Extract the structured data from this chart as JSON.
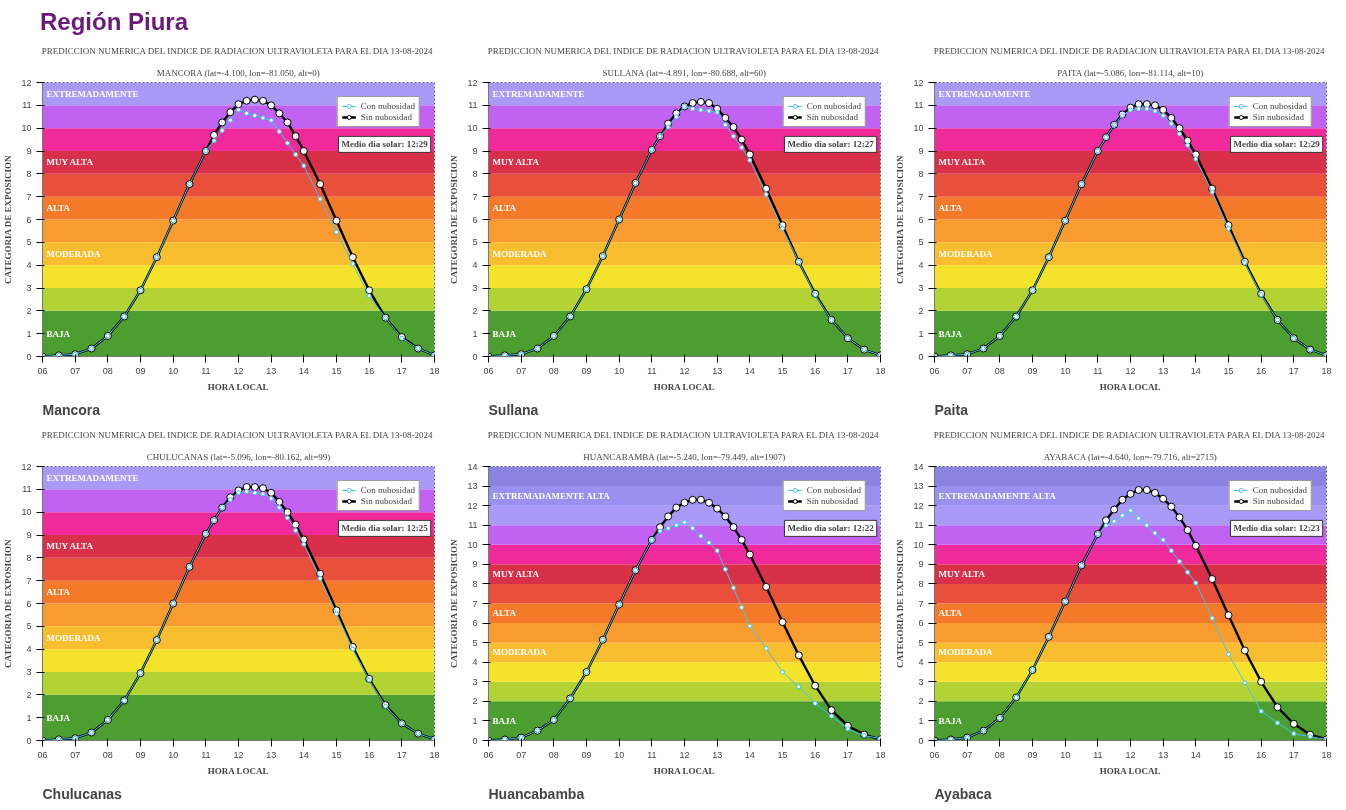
{
  "chart_data": [
    {
      "type": "line",
      "title": "PREDICCION NUMERICA DEL INDICE DE RADIACION ULTRAVIOLETA PARA EL DIA 13-08-2024",
      "subtitle": "MANCORA (lat=-4.100, lon=-81.050, alt=0)",
      "xlabel": "HORA LOCAL",
      "ylabel": "CATEGORIA DE EXPOSICION",
      "marker": "circle",
      "line_style": "solid",
      "legend": "top right",
      "x": [
        6,
        6.5,
        7,
        7.5,
        8,
        8.5,
        9,
        9.5,
        10,
        10.5,
        11,
        11.25,
        11.5,
        11.75,
        12,
        12.25,
        12.5,
        12.75,
        13,
        13.25,
        13.5,
        13.75,
        14,
        14.5,
        15,
        15.5,
        16,
        16.5,
        17,
        17.5,
        18
      ],
      "series": [
        {
          "name": "Con nubosidad",
          "color": "#45c4e6",
          "values": [
            0,
            0.05,
            0.1,
            0.35,
            0.9,
            1.75,
            2.9,
            4.35,
            5.95,
            7.55,
            9.0,
            9.45,
            9.9,
            10.35,
            10.8,
            10.65,
            10.55,
            10.45,
            10.35,
            9.85,
            9.35,
            8.85,
            8.35,
            6.9,
            5.45,
            4.05,
            2.65,
            1.7,
            0.8,
            0.35,
            0.05
          ]
        },
        {
          "name": "Sin nubosidad",
          "color": "#000000",
          "values": [
            0,
            0.05,
            0.1,
            0.35,
            0.9,
            1.75,
            2.9,
            4.35,
            5.95,
            7.55,
            9.0,
            9.7,
            10.25,
            10.7,
            11.05,
            11.2,
            11.25,
            11.2,
            11.0,
            10.65,
            10.25,
            9.65,
            9.0,
            7.55,
            5.95,
            4.35,
            2.9,
            1.7,
            0.85,
            0.35,
            0.05
          ]
        }
      ],
      "xlim": [
        6,
        18
      ],
      "ylim": [
        0,
        12
      ],
      "xticks": [
        {
          "value": 6,
          "label": "06"
        },
        {
          "value": 7,
          "label": "07"
        },
        {
          "value": 8,
          "label": "08"
        },
        {
          "value": 9,
          "label": "09"
        },
        10,
        11,
        12,
        13,
        14,
        15,
        16,
        17,
        18
      ],
      "yticks": [
        0,
        1,
        2,
        3,
        4,
        5,
        6,
        7,
        8,
        9,
        10,
        11,
        12
      ],
      "bands": [
        {
          "axis": "y",
          "from": 0,
          "to": 2,
          "color": "#4b9e2f",
          "label": "BAJA"
        },
        {
          "axis": "y",
          "from": 2,
          "to": 3,
          "color": "#b3d334"
        },
        {
          "axis": "y",
          "from": 3,
          "to": 4,
          "color": "#f5e32b"
        },
        {
          "axis": "y",
          "from": 4,
          "to": 5,
          "color": "#f8be30",
          "label": "MODERADA"
        },
        {
          "axis": "y",
          "from": 5,
          "to": 6,
          "color": "#f89c30"
        },
        {
          "axis": "y",
          "from": 6,
          "to": 7,
          "color": "#f47a2a",
          "label": "ALTA"
        },
        {
          "axis": "y",
          "from": 7,
          "to": 8,
          "color": "#e8503c"
        },
        {
          "axis": "y",
          "from": 8,
          "to": 9,
          "color": "#d9304a",
          "label": "MUY ALTA"
        },
        {
          "axis": "y",
          "from": 9,
          "to": 10,
          "color": "#f02a9a"
        },
        {
          "axis": "y",
          "from": 10,
          "to": 11,
          "color": "#c262f2"
        },
        {
          "axis": "y",
          "from": 11,
          "to": 12,
          "color": "#a99af8",
          "label": "EXTREMADAMENTE"
        }
      ],
      "annotations": [
        "Región Piura",
        "Medio dia solar: 12:29",
        "Mancora"
      ]
    },
    {
      "type": "line",
      "title": "PREDICCION NUMERICA DEL INDICE DE RADIACION ULTRAVIOLETA PARA EL DIA 13-08-2024",
      "subtitle": "SULLANA (lat=-4.891, lon=-80.688, alt=60)",
      "xlabel": "HORA LOCAL",
      "ylabel": "CATEGORIA DE EXPOSICION",
      "marker": "circle",
      "line_style": "solid",
      "legend": "top right",
      "x": [
        6,
        6.5,
        7,
        7.5,
        8,
        8.5,
        9,
        9.5,
        10,
        10.5,
        11,
        11.25,
        11.5,
        11.75,
        12,
        12.25,
        12.5,
        12.75,
        13,
        13.25,
        13.5,
        13.75,
        14,
        14.5,
        15,
        15.5,
        16,
        16.5,
        17,
        17.5,
        18
      ],
      "series": [
        {
          "name": "Con nubosidad",
          "color": "#45c4e6",
          "values": [
            0,
            0.05,
            0.1,
            0.35,
            0.9,
            1.75,
            2.95,
            4.4,
            6.0,
            7.6,
            9.05,
            9.65,
            10.05,
            10.5,
            10.95,
            10.85,
            10.8,
            10.75,
            10.7,
            10.15,
            9.65,
            9.15,
            8.6,
            7.1,
            5.6,
            4.15,
            2.7,
            1.6,
            0.8,
            0.3,
            0.05
          ]
        },
        {
          "name": "Sin nubosidad",
          "color": "#000000",
          "values": [
            0,
            0.05,
            0.1,
            0.35,
            0.9,
            1.75,
            2.95,
            4.4,
            6.0,
            7.6,
            9.05,
            9.65,
            10.2,
            10.65,
            10.95,
            11.1,
            11.15,
            11.1,
            10.85,
            10.45,
            10.05,
            9.5,
            8.85,
            7.35,
            5.75,
            4.15,
            2.75,
            1.6,
            0.8,
            0.3,
            0.05
          ]
        }
      ],
      "xlim": [
        6,
        18
      ],
      "ylim": [
        0,
        12
      ],
      "xticks": [
        {
          "value": 6,
          "label": "06"
        },
        {
          "value": 7,
          "label": "07"
        },
        {
          "value": 8,
          "label": "08"
        },
        {
          "value": 9,
          "label": "09"
        },
        10,
        11,
        12,
        13,
        14,
        15,
        16,
        17,
        18
      ],
      "yticks": [
        0,
        1,
        2,
        3,
        4,
        5,
        6,
        7,
        8,
        9,
        10,
        11,
        12
      ],
      "bands": [
        {
          "axis": "y",
          "from": 0,
          "to": 2,
          "color": "#4b9e2f",
          "label": "BAJA"
        },
        {
          "axis": "y",
          "from": 2,
          "to": 3,
          "color": "#b3d334"
        },
        {
          "axis": "y",
          "from": 3,
          "to": 4,
          "color": "#f5e32b"
        },
        {
          "axis": "y",
          "from": 4,
          "to": 5,
          "color": "#f8be30",
          "label": "MODERADA"
        },
        {
          "axis": "y",
          "from": 5,
          "to": 6,
          "color": "#f89c30"
        },
        {
          "axis": "y",
          "from": 6,
          "to": 7,
          "color": "#f47a2a",
          "label": "ALTA"
        },
        {
          "axis": "y",
          "from": 7,
          "to": 8,
          "color": "#e8503c"
        },
        {
          "axis": "y",
          "from": 8,
          "to": 9,
          "color": "#d9304a",
          "label": "MUY ALTA"
        },
        {
          "axis": "y",
          "from": 9,
          "to": 10,
          "color": "#f02a9a"
        },
        {
          "axis": "y",
          "from": 10,
          "to": 11,
          "color": "#c262f2"
        },
        {
          "axis": "y",
          "from": 11,
          "to": 12,
          "color": "#a99af8",
          "label": "EXTREMADAMENTE"
        }
      ],
      "annotations": [
        "Medio dia solar: 12:27",
        "Sullana"
      ]
    },
    {
      "type": "line",
      "title": "PREDICCION NUMERICA DEL INDICE DE RADIACION ULTRAVIOLETA PARA EL DIA 13-08-2024",
      "subtitle": "PAITA (lat=-5.086, lon=-81.114, alt=10)",
      "xlabel": "HORA LOCAL",
      "ylabel": "CATEGORIA DE EXPOSICION",
      "marker": "circle",
      "line_style": "solid",
      "legend": "top right",
      "x": [
        6,
        6.5,
        7,
        7.5,
        8,
        8.5,
        9,
        9.5,
        10,
        10.5,
        11,
        11.25,
        11.5,
        11.75,
        12,
        12.25,
        12.5,
        12.75,
        13,
        13.25,
        13.5,
        13.75,
        14,
        14.5,
        15,
        15.5,
        16,
        16.5,
        17,
        17.5,
        18
      ],
      "series": [
        {
          "name": "Con nubosidad",
          "color": "#45c4e6",
          "values": [
            0,
            0.05,
            0.1,
            0.35,
            0.9,
            1.75,
            2.9,
            4.35,
            5.95,
            7.55,
            9.0,
            9.6,
            10.15,
            10.55,
            10.8,
            10.85,
            10.85,
            10.75,
            10.55,
            10.2,
            9.75,
            9.25,
            8.65,
            7.2,
            5.6,
            4.1,
            2.7,
            1.6,
            0.8,
            0.3,
            0.05
          ]
        },
        {
          "name": "Sin nubosidad",
          "color": "#000000",
          "values": [
            0,
            0.05,
            0.1,
            0.35,
            0.9,
            1.75,
            2.9,
            4.35,
            5.95,
            7.55,
            9.0,
            9.6,
            10.15,
            10.6,
            10.9,
            11.05,
            11.05,
            11.0,
            10.8,
            10.45,
            10.0,
            9.45,
            8.85,
            7.35,
            5.75,
            4.15,
            2.75,
            1.6,
            0.8,
            0.3,
            0.05
          ]
        }
      ],
      "xlim": [
        6,
        18
      ],
      "ylim": [
        0,
        12
      ],
      "xticks": [
        {
          "value": 6,
          "label": "06"
        },
        {
          "value": 7,
          "label": "07"
        },
        {
          "value": 8,
          "label": "08"
        },
        {
          "value": 9,
          "label": "09"
        },
        10,
        11,
        12,
        13,
        14,
        15,
        16,
        17,
        18
      ],
      "yticks": [
        0,
        1,
        2,
        3,
        4,
        5,
        6,
        7,
        8,
        9,
        10,
        11,
        12
      ],
      "bands": [
        {
          "axis": "y",
          "from": 0,
          "to": 2,
          "color": "#4b9e2f",
          "label": "BAJA"
        },
        {
          "axis": "y",
          "from": 2,
          "to": 3,
          "color": "#b3d334"
        },
        {
          "axis": "y",
          "from": 3,
          "to": 4,
          "color": "#f5e32b"
        },
        {
          "axis": "y",
          "from": 4,
          "to": 5,
          "color": "#f8be30",
          "label": "MODERADA"
        },
        {
          "axis": "y",
          "from": 5,
          "to": 6,
          "color": "#f89c30"
        },
        {
          "axis": "y",
          "from": 6,
          "to": 7,
          "color": "#f47a2a",
          "label": "ALTA"
        },
        {
          "axis": "y",
          "from": 7,
          "to": 8,
          "color": "#e8503c"
        },
        {
          "axis": "y",
          "from": 8,
          "to": 9,
          "color": "#d9304a",
          "label": "MUY ALTA"
        },
        {
          "axis": "y",
          "from": 9,
          "to": 10,
          "color": "#f02a9a"
        },
        {
          "axis": "y",
          "from": 10,
          "to": 11,
          "color": "#c262f2"
        },
        {
          "axis": "y",
          "from": 11,
          "to": 12,
          "color": "#a99af8",
          "label": "EXTREMADAMENTE"
        }
      ],
      "annotations": [
        "Medio dia solar: 12:29",
        "Paita"
      ]
    },
    {
      "type": "line",
      "title": "PREDICCION NUMERICA DEL INDICE DE RADIACION ULTRAVIOLETA PARA EL DIA 13-08-2024",
      "subtitle": "CHULUCANAS (lat=-5.096, lon=-80.162, alt=99)",
      "xlabel": "HORA LOCAL",
      "ylabel": "CATEGORIA DE EXPOSICION",
      "marker": "circle",
      "line_style": "solid",
      "legend": "top right",
      "x": [
        6,
        6.5,
        7,
        7.5,
        8,
        8.5,
        9,
        9.5,
        10,
        10.5,
        11,
        11.25,
        11.5,
        11.75,
        12,
        12.25,
        12.5,
        12.75,
        13,
        13.25,
        13.5,
        13.75,
        14,
        14.5,
        15,
        15.5,
        16,
        16.5,
        17,
        17.5,
        18
      ],
      "series": [
        {
          "name": "Con nubosidad",
          "color": "#45c4e6",
          "values": [
            0,
            0.05,
            0.1,
            0.35,
            0.9,
            1.75,
            2.95,
            4.4,
            6.0,
            7.6,
            9.05,
            9.65,
            10.2,
            10.55,
            10.85,
            10.9,
            10.85,
            10.8,
            10.6,
            10.2,
            9.75,
            9.2,
            8.6,
            7.1,
            5.55,
            4.0,
            2.65,
            1.5,
            0.75,
            0.3,
            0.05
          ]
        },
        {
          "name": "Sin nubosidad",
          "color": "#000000",
          "values": [
            0,
            0.05,
            0.1,
            0.35,
            0.9,
            1.75,
            2.95,
            4.4,
            6.0,
            7.6,
            9.05,
            9.65,
            10.2,
            10.65,
            10.95,
            11.1,
            11.1,
            11.05,
            10.85,
            10.45,
            10.0,
            9.45,
            8.8,
            7.3,
            5.7,
            4.1,
            2.7,
            1.55,
            0.75,
            0.3,
            0.05
          ]
        }
      ],
      "xlim": [
        6,
        18
      ],
      "ylim": [
        0,
        12
      ],
      "xticks": [
        {
          "value": 6,
          "label": "06"
        },
        {
          "value": 7,
          "label": "07"
        },
        {
          "value": 8,
          "label": "08"
        },
        {
          "value": 9,
          "label": "09"
        },
        10,
        11,
        12,
        13,
        14,
        15,
        16,
        17,
        18
      ],
      "yticks": [
        0,
        1,
        2,
        3,
        4,
        5,
        6,
        7,
        8,
        9,
        10,
        11,
        12
      ],
      "bands": [
        {
          "axis": "y",
          "from": 0,
          "to": 2,
          "color": "#4b9e2f",
          "label": "BAJA"
        },
        {
          "axis": "y",
          "from": 2,
          "to": 3,
          "color": "#b3d334"
        },
        {
          "axis": "y",
          "from": 3,
          "to": 4,
          "color": "#f5e32b"
        },
        {
          "axis": "y",
          "from": 4,
          "to": 5,
          "color": "#f8be30",
          "label": "MODERADA"
        },
        {
          "axis": "y",
          "from": 5,
          "to": 6,
          "color": "#f89c30"
        },
        {
          "axis": "y",
          "from": 6,
          "to": 7,
          "color": "#f47a2a",
          "label": "ALTA"
        },
        {
          "axis": "y",
          "from": 7,
          "to": 8,
          "color": "#e8503c"
        },
        {
          "axis": "y",
          "from": 8,
          "to": 9,
          "color": "#d9304a",
          "label": "MUY ALTA"
        },
        {
          "axis": "y",
          "from": 9,
          "to": 10,
          "color": "#f02a9a"
        },
        {
          "axis": "y",
          "from": 10,
          "to": 11,
          "color": "#c262f2"
        },
        {
          "axis": "y",
          "from": 11,
          "to": 12,
          "color": "#a99af8",
          "label": "EXTREMADAMENTE"
        }
      ],
      "annotations": [
        "Medio dia solar: 12:25",
        "Chulucanas"
      ]
    },
    {
      "type": "line",
      "title": "PREDICCION NUMERICA DEL INDICE DE RADIACION ULTRAVIOLETA PARA EL DIA 13-08-2024",
      "subtitle": "HUANCABAMBA (lat=-5.240, lon=-79.449, alt=1907)",
      "xlabel": "HORA LOCAL",
      "ylabel": "CATEGORIA DE EXPOSICION",
      "marker": "circle",
      "line_style": "solid",
      "legend": "top right",
      "x": [
        6,
        6.5,
        7,
        7.5,
        8,
        8.5,
        9,
        9.5,
        10,
        10.5,
        11,
        11.25,
        11.5,
        11.75,
        12,
        12.25,
        12.5,
        12.75,
        13,
        13.25,
        13.5,
        13.75,
        14,
        14.5,
        15,
        15.5,
        16,
        16.5,
        17,
        17.5,
        18
      ],
      "series": [
        {
          "name": "Con nubosidad",
          "color": "#45c4e6",
          "values": [
            0,
            0.05,
            0.15,
            0.5,
            1.05,
            2.15,
            3.5,
            5.15,
            6.95,
            8.7,
            10.25,
            10.7,
            10.85,
            11.0,
            11.15,
            10.85,
            10.45,
            10.1,
            9.7,
            8.75,
            7.8,
            6.8,
            5.85,
            4.7,
            3.5,
            2.75,
            1.9,
            1.25,
            0.6,
            0.25,
            0.1
          ]
        },
        {
          "name": "Sin nubosidad",
          "color": "#000000",
          "values": [
            0,
            0.05,
            0.15,
            0.5,
            1.05,
            2.15,
            3.5,
            5.15,
            6.95,
            8.7,
            10.25,
            10.9,
            11.45,
            11.9,
            12.15,
            12.3,
            12.3,
            12.15,
            11.85,
            11.45,
            10.9,
            10.25,
            9.5,
            7.85,
            6.05,
            4.35,
            2.8,
            1.55,
            0.75,
            0.3,
            0.05
          ]
        }
      ],
      "xlim": [
        6,
        18
      ],
      "ylim": [
        0,
        14
      ],
      "xticks": [
        {
          "value": 6,
          "label": "06"
        },
        {
          "value": 7,
          "label": "07"
        },
        {
          "value": 8,
          "label": "08"
        },
        {
          "value": 9,
          "label": "09"
        },
        10,
        11,
        12,
        13,
        14,
        15,
        16,
        17,
        18
      ],
      "yticks": [
        0,
        1,
        2,
        3,
        4,
        5,
        6,
        7,
        8,
        9,
        10,
        11,
        12,
        13,
        14
      ],
      "bands": [
        {
          "axis": "y",
          "from": 0,
          "to": 2,
          "color": "#4b9e2f",
          "label": "BAJA"
        },
        {
          "axis": "y",
          "from": 2,
          "to": 3,
          "color": "#b3d334"
        },
        {
          "axis": "y",
          "from": 3,
          "to": 4,
          "color": "#f5e32b"
        },
        {
          "axis": "y",
          "from": 4,
          "to": 5,
          "color": "#f8be30",
          "label": "MODERADA"
        },
        {
          "axis": "y",
          "from": 5,
          "to": 6,
          "color": "#f89c30"
        },
        {
          "axis": "y",
          "from": 6,
          "to": 7,
          "color": "#f47a2a",
          "label": "ALTA"
        },
        {
          "axis": "y",
          "from": 7,
          "to": 8,
          "color": "#e8503c"
        },
        {
          "axis": "y",
          "from": 8,
          "to": 9,
          "color": "#d9304a",
          "label": "MUY ALTA"
        },
        {
          "axis": "y",
          "from": 9,
          "to": 10,
          "color": "#f02a9a"
        },
        {
          "axis": "y",
          "from": 10,
          "to": 11,
          "color": "#c262f2"
        },
        {
          "axis": "y",
          "from": 11,
          "to": 12,
          "color": "#a99af8"
        },
        {
          "axis": "y",
          "from": 12,
          "to": 13,
          "color": "#9a90f0",
          "label": "EXTREMADAMENTE ALTA"
        },
        {
          "axis": "y",
          "from": 13,
          "to": 14,
          "color": "#8c82e2"
        }
      ],
      "annotations": [
        "Medio dia solar: 12:22",
        "Huancabamba"
      ]
    },
    {
      "type": "line",
      "title": "PREDICCION NUMERICA DEL INDICE DE RADIACION ULTRAVIOLETA PARA EL DIA 13-08-2024",
      "subtitle": "AYABACA (lat=-4.640, lon=-79.716, alt=2715)",
      "xlabel": "HORA LOCAL",
      "ylabel": "CATEGORIA DE EXPOSICION",
      "marker": "circle",
      "line_style": "solid",
      "legend": "top right",
      "x": [
        6,
        6.5,
        7,
        7.5,
        8,
        8.5,
        9,
        9.5,
        10,
        10.5,
        11,
        11.25,
        11.5,
        11.75,
        12,
        12.25,
        12.5,
        12.75,
        13,
        13.25,
        13.5,
        13.75,
        14,
        14.5,
        15,
        15.5,
        16,
        16.5,
        17,
        17.5,
        18
      ],
      "series": [
        {
          "name": "Con nubosidad",
          "color": "#45c4e6",
          "values": [
            0,
            0.05,
            0.15,
            0.5,
            1.15,
            2.2,
            3.6,
            5.3,
            7.1,
            8.95,
            10.55,
            11.0,
            11.2,
            11.5,
            11.75,
            11.35,
            11.0,
            10.6,
            10.25,
            9.7,
            9.15,
            8.6,
            8.05,
            6.25,
            4.4,
            2.95,
            1.5,
            0.9,
            0.35,
            0.2,
            0.05
          ]
        },
        {
          "name": "Sin nubosidad",
          "color": "#000000",
          "values": [
            0,
            0.05,
            0.15,
            0.5,
            1.15,
            2.2,
            3.6,
            5.3,
            7.1,
            8.95,
            10.55,
            11.25,
            11.8,
            12.3,
            12.6,
            12.8,
            12.8,
            12.65,
            12.35,
            11.95,
            11.4,
            10.75,
            9.95,
            8.25,
            6.4,
            4.6,
            3.0,
            1.7,
            0.85,
            0.3,
            0.05
          ]
        }
      ],
      "xlim": [
        6,
        18
      ],
      "ylim": [
        0,
        14
      ],
      "xticks": [
        {
          "value": 6,
          "label": "06"
        },
        {
          "value": 7,
          "label": "07"
        },
        {
          "value": 8,
          "label": "08"
        },
        {
          "value": 9,
          "label": "09"
        },
        10,
        11,
        12,
        13,
        14,
        15,
        16,
        17,
        18
      ],
      "yticks": [
        0,
        1,
        2,
        3,
        4,
        5,
        6,
        7,
        8,
        9,
        10,
        11,
        12,
        13,
        14
      ],
      "bands": [
        {
          "axis": "y",
          "from": 0,
          "to": 2,
          "color": "#4b9e2f",
          "label": "BAJA"
        },
        {
          "axis": "y",
          "from": 2,
          "to": 3,
          "color": "#b3d334"
        },
        {
          "axis": "y",
          "from": 3,
          "to": 4,
          "color": "#f5e32b"
        },
        {
          "axis": "y",
          "from": 4,
          "to": 5,
          "color": "#f8be30",
          "label": "MODERADA"
        },
        {
          "axis": "y",
          "from": 5,
          "to": 6,
          "color": "#f89c30"
        },
        {
          "axis": "y",
          "from": 6,
          "to": 7,
          "color": "#f47a2a",
          "label": "ALTA"
        },
        {
          "axis": "y",
          "from": 7,
          "to": 8,
          "color": "#e8503c"
        },
        {
          "axis": "y",
          "from": 8,
          "to": 9,
          "color": "#d9304a",
          "label": "MUY ALTA"
        },
        {
          "axis": "y",
          "from": 9,
          "to": 10,
          "color": "#f02a9a"
        },
        {
          "axis": "y",
          "from": 10,
          "to": 11,
          "color": "#c262f2"
        },
        {
          "axis": "y",
          "from": 11,
          "to": 12,
          "color": "#a99af8"
        },
        {
          "axis": "y",
          "from": 12,
          "to": 13,
          "color": "#9a90f0",
          "label": "EXTREMADAMENTE ALTA"
        },
        {
          "axis": "y",
          "from": 13,
          "to": 14,
          "color": "#8c82e2"
        }
      ],
      "annotations": [
        "Medio dia solar: 12:23",
        "Ayabaca"
      ]
    }
  ]
}
